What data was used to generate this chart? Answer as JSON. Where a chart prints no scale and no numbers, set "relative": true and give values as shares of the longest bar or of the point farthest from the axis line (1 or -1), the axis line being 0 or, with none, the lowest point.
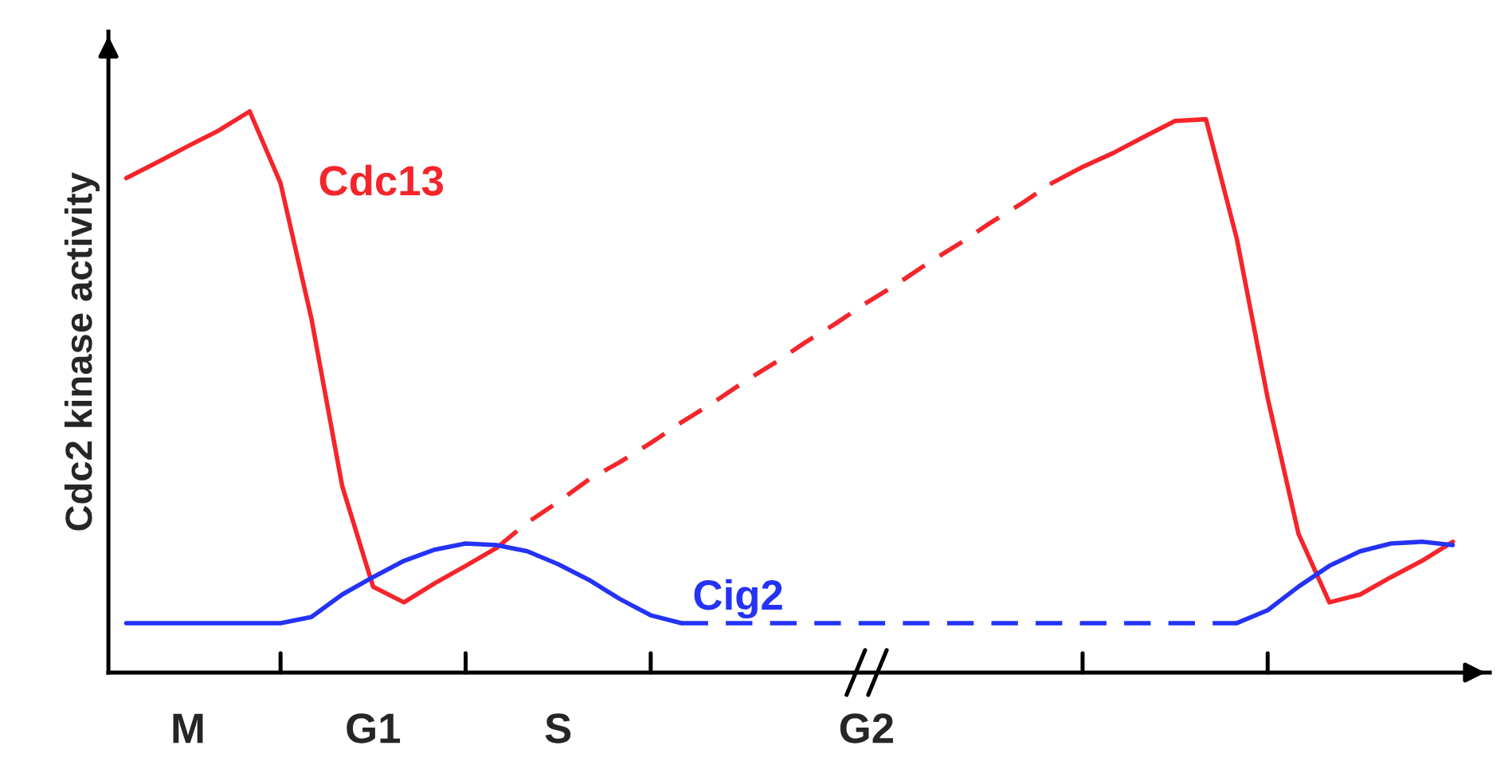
{
  "chart_data": {
    "type": "line",
    "relative": true,
    "ylabel": "Cdc2 kinase activity",
    "categories": [
      null,
      null,
      "M",
      null,
      null,
      null,
      null,
      null,
      "G1",
      null,
      null,
      null,
      null,
      null,
      "S",
      null,
      null,
      null,
      null,
      null,
      null,
      null,
      null,
      null,
      "G2",
      null,
      null,
      null,
      null,
      null,
      null,
      null,
      null,
      null,
      null,
      null,
      null,
      null,
      null,
      null,
      null,
      null,
      null,
      null
    ],
    "grid": false,
    "legend": false,
    "marker": "none",
    "series": [
      {
        "name": "Cdc13",
        "color": "#f4252b",
        "line_style": "solid",
        "values": [
          0.881,
          0.909,
          0.938,
          0.966,
          1.0,
          0.872,
          0.631,
          0.332,
          0.153,
          0.125,
          0.159,
          0.19,
          0.222,
          null,
          null,
          null,
          null,
          null,
          null,
          null,
          null,
          null,
          null,
          null,
          null,
          null,
          null,
          null,
          null,
          null,
          null,
          null,
          null,
          null,
          null,
          null,
          null,
          null,
          null,
          null,
          null,
          null,
          null,
          null
        ]
      },
      {
        "color": "#f4252b",
        "line_style": "dashed",
        "values": [
          null,
          null,
          null,
          null,
          null,
          null,
          null,
          null,
          null,
          null,
          null,
          null,
          0.222,
          0.267,
          0.304,
          0.344,
          0.375,
          0.409,
          0.446,
          0.48,
          0.517,
          0.551,
          0.588,
          0.622,
          0.659,
          0.693,
          0.73,
          0.764,
          0.801,
          0.835,
          0.872,
          null,
          null,
          null,
          null,
          null,
          null,
          null,
          null,
          null,
          null,
          null,
          null,
          null
        ]
      },
      {
        "color": "#f4252b",
        "line_style": "solid",
        "values": [
          null,
          null,
          null,
          null,
          null,
          null,
          null,
          null,
          null,
          null,
          null,
          null,
          null,
          null,
          null,
          null,
          null,
          null,
          null,
          null,
          null,
          null,
          null,
          null,
          null,
          null,
          null,
          null,
          null,
          null,
          0.872,
          0.901,
          0.926,
          0.955,
          0.983,
          0.986,
          0.773,
          0.489,
          0.247,
          0.125,
          0.139,
          0.17,
          0.199,
          0.233
        ]
      },
      {
        "name": "Cig2",
        "color": "#2433f5",
        "line_style": "solid",
        "values": [
          0.088,
          0.088,
          0.088,
          0.088,
          0.088,
          0.088,
          0.099,
          0.139,
          0.17,
          0.199,
          0.219,
          0.23,
          0.227,
          0.216,
          0.193,
          0.165,
          0.131,
          0.102,
          0.088,
          null,
          null,
          null,
          null,
          null,
          null,
          null,
          null,
          null,
          null,
          null,
          null,
          null,
          null,
          null,
          null,
          null,
          null,
          null,
          null,
          null,
          null,
          null,
          null,
          null
        ]
      },
      {
        "color": "#2433f5",
        "line_style": "dashed",
        "values": [
          null,
          null,
          null,
          null,
          null,
          null,
          null,
          null,
          null,
          null,
          null,
          null,
          null,
          null,
          null,
          null,
          null,
          null,
          0.088,
          0.088,
          0.088,
          0.088,
          0.088,
          0.088,
          0.088,
          0.088,
          0.088,
          0.088,
          0.088,
          0.088,
          0.088,
          0.088,
          0.088,
          0.088,
          0.088,
          0.088,
          0.088,
          null,
          null,
          null,
          null,
          null,
          null,
          null
        ]
      },
      {
        "color": "#2433f5",
        "line_style": "solid",
        "values": [
          null,
          null,
          null,
          null,
          null,
          null,
          null,
          null,
          null,
          null,
          null,
          null,
          null,
          null,
          null,
          null,
          null,
          null,
          null,
          null,
          null,
          null,
          null,
          null,
          null,
          null,
          null,
          null,
          null,
          null,
          null,
          null,
          null,
          null,
          null,
          null,
          0.088,
          0.111,
          0.153,
          0.19,
          0.216,
          0.23,
          0.233,
          0.227
        ]
      }
    ]
  }
}
